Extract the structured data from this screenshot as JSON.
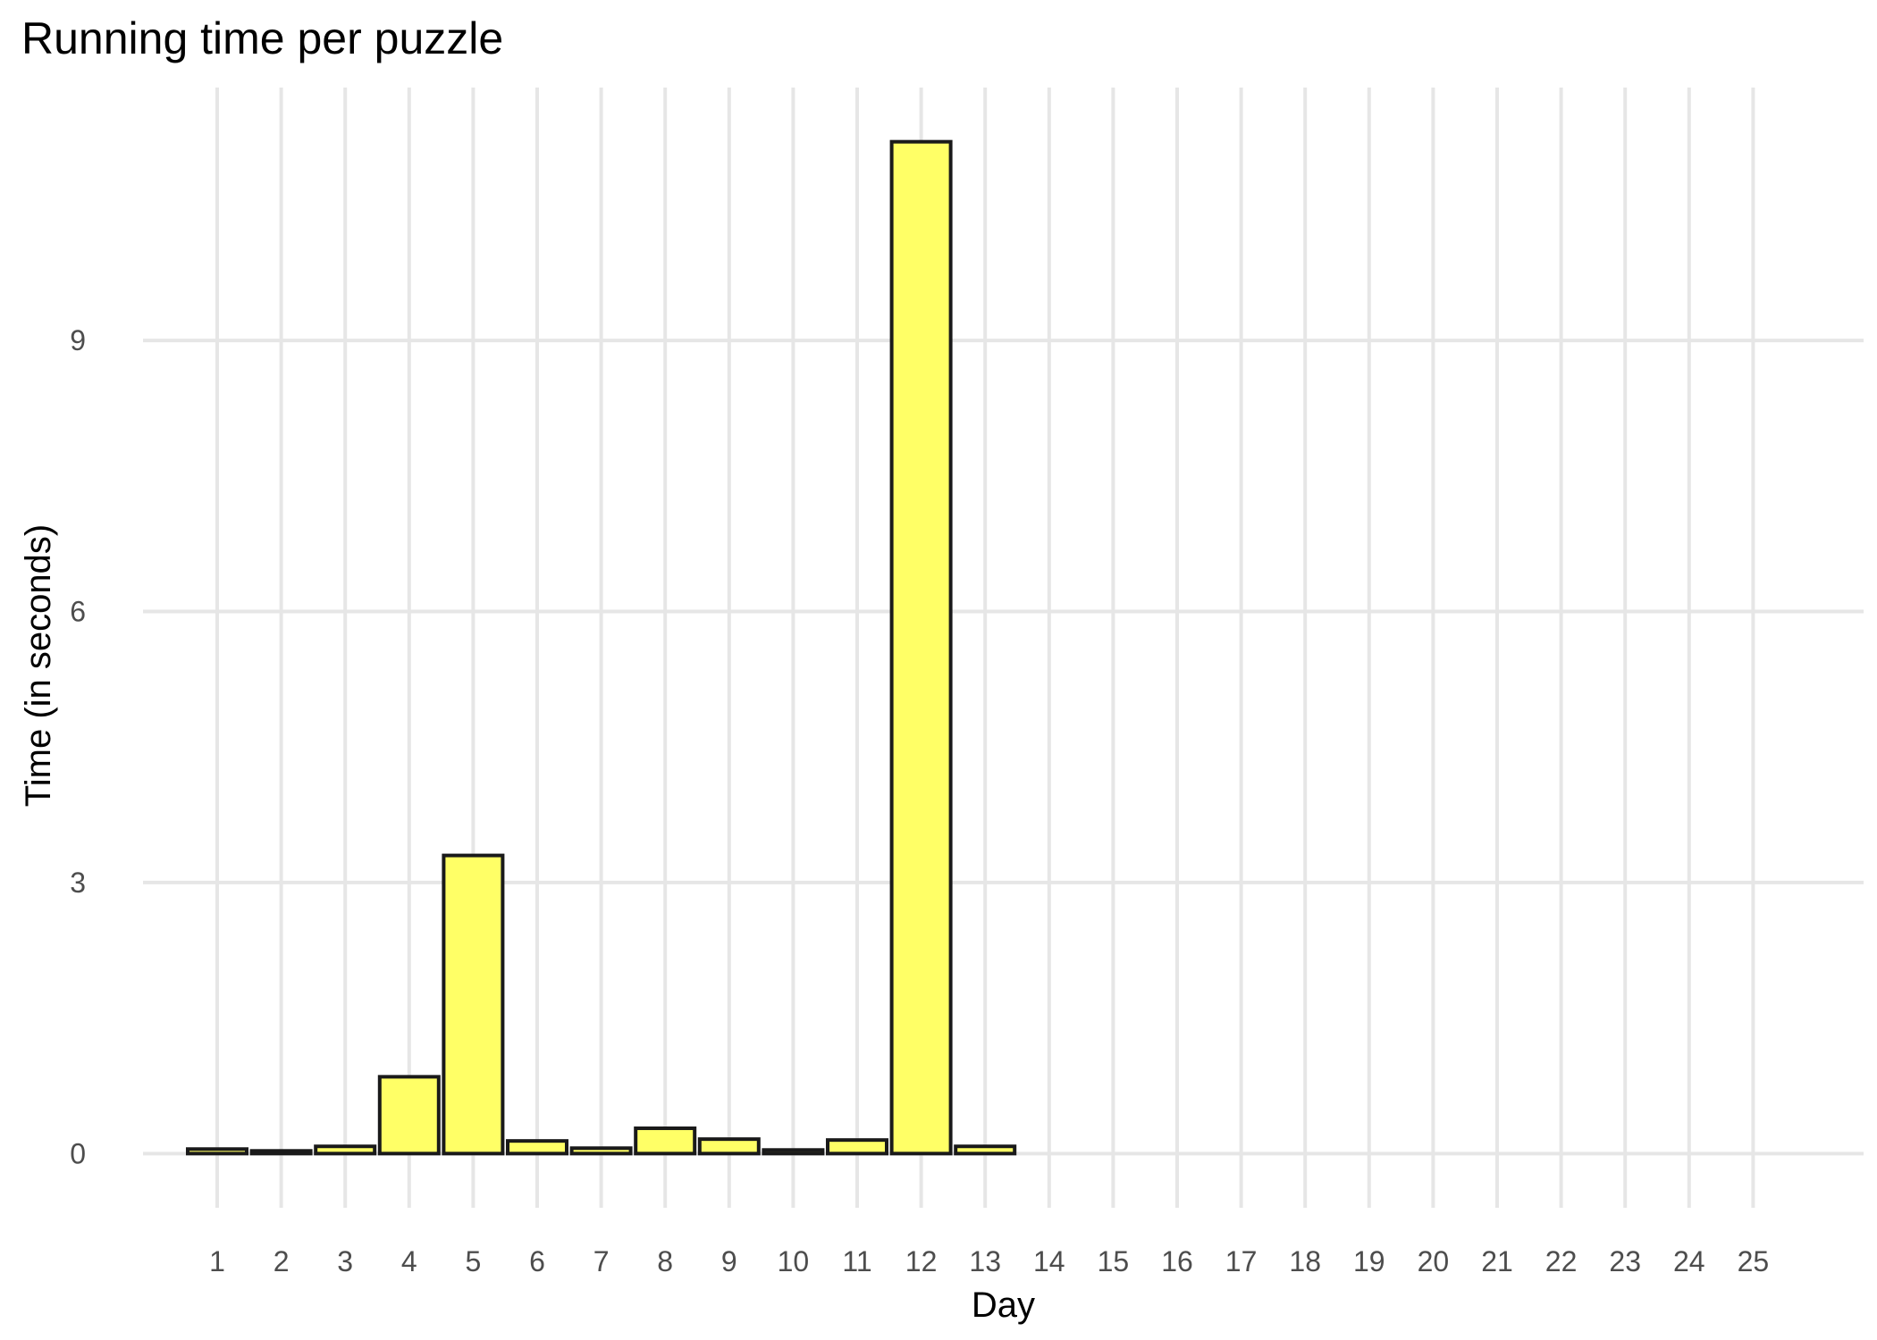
{
  "chart_data": {
    "type": "bar",
    "title": "Running time per puzzle",
    "xlabel": "Day",
    "ylabel": "Time (in seconds)",
    "categories": [
      "1",
      "2",
      "3",
      "4",
      "5",
      "6",
      "7",
      "8",
      "9",
      "10",
      "11",
      "12",
      "13",
      "14",
      "15",
      "16",
      "17",
      "18",
      "19",
      "20",
      "21",
      "22",
      "23",
      "24",
      "25"
    ],
    "values": [
      0.05,
      0.03,
      0.08,
      0.85,
      3.3,
      0.14,
      0.06,
      0.28,
      0.16,
      0.04,
      0.15,
      11.2,
      0.08,
      null,
      null,
      null,
      null,
      null,
      null,
      null,
      null,
      null,
      null,
      null,
      null
    ],
    "yticks": [
      0,
      3,
      6,
      9
    ],
    "ylim": [
      -0.6,
      11.8
    ],
    "grid": true,
    "colors": {
      "bar_fill": "#ffff66",
      "bar_stroke": "#1a1a1a",
      "grid": "#e6e6e6"
    }
  }
}
